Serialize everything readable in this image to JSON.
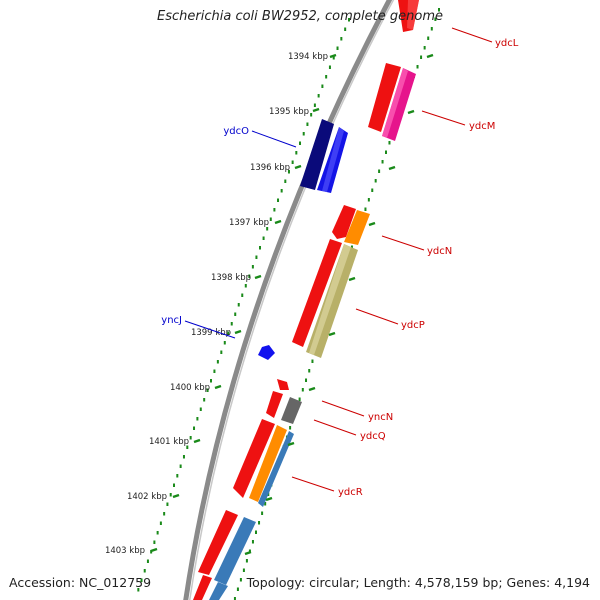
{
  "title": "Escherichia coli BW2952, complete genome",
  "accession": "Accession: NC_012759",
  "topology": "Topology: circular; Length: 4,578,159 bp; Genes: 4,194",
  "colors": {
    "backbone": "#8a8a8a",
    "ticks": "#1a8a1a",
    "gene_label": "#cc0000",
    "neg_label": "#0000cc",
    "tick_label": "#222222"
  },
  "ticks": [
    {
      "label": "1394 kbp"
    },
    {
      "label": "1395 kbp"
    },
    {
      "label": "1396 kbp"
    },
    {
      "label": "1397 kbp"
    },
    {
      "label": "1398 kbp"
    },
    {
      "label": "1399 kbp"
    },
    {
      "label": "1400 kbp"
    },
    {
      "label": "1401 kbp"
    },
    {
      "label": "1402 kbp"
    },
    {
      "label": "1403 kbp"
    }
  ],
  "gene_labels": [
    {
      "name": "ydcL",
      "strand": "+"
    },
    {
      "name": "ydcM",
      "strand": "+"
    },
    {
      "name": "ydcO",
      "strand": "-"
    },
    {
      "name": "ydcN",
      "strand": "+"
    },
    {
      "name": "ydcP",
      "strand": "+"
    },
    {
      "name": "yncJ",
      "strand": "-"
    },
    {
      "name": "yncN",
      "strand": "+"
    },
    {
      "name": "ydcQ",
      "strand": "+"
    },
    {
      "name": "ydcR",
      "strand": "+"
    }
  ]
}
